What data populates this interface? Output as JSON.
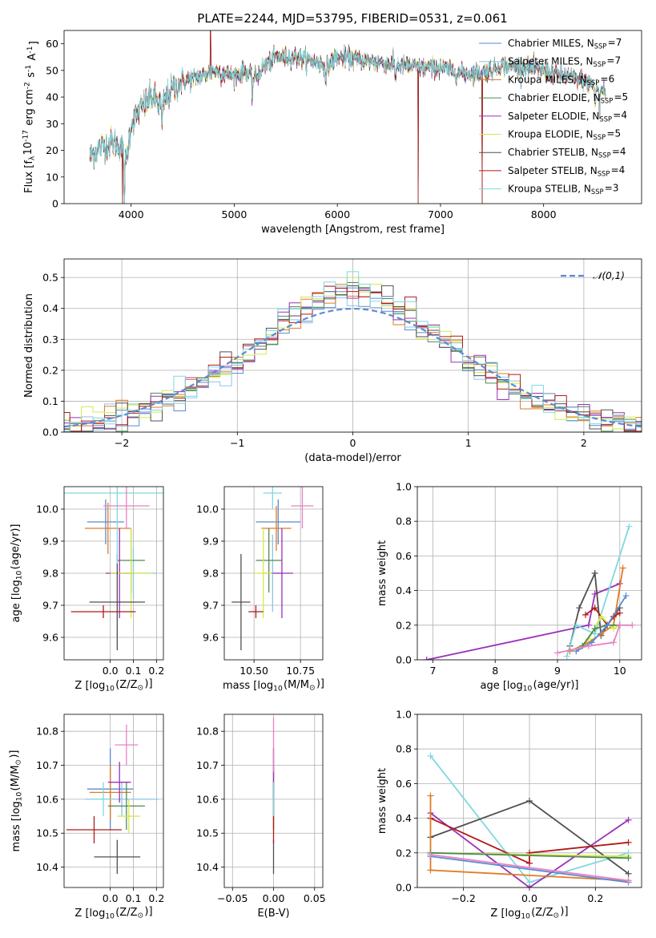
{
  "chart_data": [
    {
      "id": "spectrum",
      "type": "line",
      "title": "PLATE=2244, MJD=53795, FIBERID=0531, z=0.061",
      "xlabel": "wavelength [Angstrom, rest frame]",
      "ylabel": "Flux [f$_\\lambda$10$^{-17}$ erg cm$^{-2}$ s$^{-1}$ A$^{-1}$]",
      "xlim": [
        3350,
        8950
      ],
      "ylim": [
        0,
        65
      ],
      "xticks": [
        4000,
        5000,
        6000,
        7000,
        8000
      ],
      "yticks": [
        0,
        10,
        20,
        30,
        40,
        50,
        60
      ],
      "grid": false,
      "legend": "top-right",
      "continuum": {
        "x": [
          3600,
          3700,
          3800,
          3900,
          3950,
          4000,
          4100,
          4200,
          4300,
          4400,
          4500,
          4600,
          4700,
          4800,
          4900,
          5000,
          5100,
          5200,
          5300,
          5400,
          5500,
          5600,
          5700,
          5800,
          5900,
          6000,
          6200,
          6400,
          6600,
          6800,
          7000,
          7200,
          7400,
          7600,
          7800,
          8000,
          8200,
          8400,
          8600
        ],
        "y": [
          18,
          21,
          23,
          22,
          15,
          30,
          36,
          40,
          37,
          43,
          46,
          47,
          48,
          50,
          49,
          48,
          50,
          47,
          52,
          55,
          55,
          55,
          54,
          53,
          52,
          55,
          54,
          53,
          52,
          51,
          51,
          49,
          49,
          52,
          51,
          50,
          48,
          46,
          42
        ]
      },
      "features": [
        {
          "x": 3934,
          "depth": 16
        },
        {
          "x": 4300,
          "depth": 10
        },
        {
          "x": 5175,
          "depth": 8
        },
        {
          "x": 5890,
          "depth": 8
        },
        {
          "x": 6563,
          "depth": 6
        },
        {
          "x": 8500,
          "depth": 8
        },
        {
          "x": 8542,
          "depth": 10
        },
        {
          "x": 8662,
          "depth": 9
        }
      ],
      "artifacts": [
        {
          "x": 3915,
          "y": 0
        },
        {
          "x": 6785,
          "y": 0
        },
        {
          "x": 7405,
          "y": 0
        },
        {
          "x": 4770,
          "y": 65
        }
      ],
      "series": [
        {
          "name": "Chabrier MILES, N$_{SSP}$=7",
          "color": "#5b8bd0"
        },
        {
          "name": "Salpeter MILES, N$_{SSP}$=7",
          "color": "#8ec4e8"
        },
        {
          "name": "Kroupa MILES, N$_{SSP}$=6",
          "color": "#e07b27"
        },
        {
          "name": "Chabrier ELODIE, N$_{SSP}$=5",
          "color": "#4f8a4f"
        },
        {
          "name": "Salpeter ELODIE, N$_{SSP}$=4",
          "color": "#9b30b8"
        },
        {
          "name": "Kroupa ELODIE, N$_{SSP}$=5",
          "color": "#d6e84a"
        },
        {
          "name": "Chabrier STELIB, N$_{SSP}$=4",
          "color": "#505050"
        },
        {
          "name": "Salpeter STELIB, N$_{SSP}$=4",
          "color": "#b01a1a"
        },
        {
          "name": "Kroupa STELIB, N$_{SSP}$=3",
          "color": "#7fd8e0"
        }
      ]
    },
    {
      "id": "residuals",
      "type": "bar",
      "xlabel": "(data-model)/error",
      "ylabel": "Normed distribution",
      "xlim": [
        -2.5,
        2.5
      ],
      "ylim": [
        0,
        0.56
      ],
      "xticks": [
        -2,
        -1,
        0,
        1,
        2
      ],
      "yticks": [
        0.0,
        0.1,
        0.2,
        0.3,
        0.4,
        0.5
      ],
      "grid": true,
      "legend": "top-right",
      "reference": {
        "name": "$\\mathcal{N}(0,1)$",
        "color": "#5b8bd0",
        "style": "dashed"
      },
      "bin_width": 0.1
    },
    {
      "id": "age-vs-Z",
      "type": "scatter",
      "xlabel": "Z [log$_{10}$(Z/Z$_\\odot$)]",
      "ylabel": "age  [log$_{10}$(age/yr)]",
      "xlim": [
        -0.2,
        0.23
      ],
      "ylim": [
        9.53,
        10.07
      ],
      "xticks": [
        0.0,
        0.1,
        0.2
      ],
      "yticks": [
        9.6,
        9.7,
        9.8,
        9.9,
        10.0
      ],
      "grid": true,
      "points": [
        {
          "x": -0.02,
          "y": 9.96,
          "xerr": 0.08,
          "yerr": 0.07,
          "color": "#5b8bd0"
        },
        {
          "x": 0.1,
          "y": 9.8,
          "xerr": 0.1,
          "yerr": 0.08,
          "color": "#8ec4e8"
        },
        {
          "x": -0.01,
          "y": 9.94,
          "xerr": 0.1,
          "yerr": 0.08,
          "color": "#e07b27"
        },
        {
          "x": 0.09,
          "y": 9.84,
          "xerr": 0.06,
          "yerr": 0.1,
          "color": "#4f8a4f"
        },
        {
          "x": 0.04,
          "y": 9.8,
          "xerr": 0.06,
          "yerr": 0.14,
          "color": "#9b30b8"
        },
        {
          "x": 0.09,
          "y": 9.8,
          "xerr": 0.09,
          "yerr": 0.14,
          "color": "#d6e84a"
        },
        {
          "x": 0.03,
          "y": 9.71,
          "xerr": 0.12,
          "yerr": 0.15,
          "color": "#505050"
        },
        {
          "x": -0.03,
          "y": 9.68,
          "xerr": 0.14,
          "yerr": 0.02,
          "color": "#b01a1a"
        },
        {
          "x": 0.03,
          "y": 10.05,
          "xerr": 0.26,
          "yerr": 0.22,
          "color": "#7fd8e0"
        },
        {
          "x": 0.07,
          "y": 10.01,
          "xerr": 0.1,
          "yerr": 0.07,
          "color": "#e882c4"
        }
      ]
    },
    {
      "id": "age-vs-mass",
      "type": "scatter",
      "xlabel": "mass [log$_{10}$(M/M$_\\odot$)]",
      "ylabel": "",
      "xlim": [
        10.34,
        10.87
      ],
      "ylim": [
        9.53,
        10.07
      ],
      "xticks": [
        10.5,
        10.75
      ],
      "yticks": [
        9.6,
        9.7,
        9.8,
        9.9,
        10.0
      ],
      "grid": true,
      "points": [
        {
          "x": 10.63,
          "y": 9.96,
          "xerr": 0.12,
          "yerr": 0.07,
          "color": "#5b8bd0"
        },
        {
          "x": 10.6,
          "y": 9.8,
          "xerr": 0.06,
          "yerr": 0.12,
          "color": "#8ec4e8"
        },
        {
          "x": 10.62,
          "y": 9.94,
          "xerr": 0.08,
          "yerr": 0.07,
          "color": "#e07b27"
        },
        {
          "x": 10.58,
          "y": 9.84,
          "xerr": 0.07,
          "yerr": 0.1,
          "color": "#4f8a4f"
        },
        {
          "x": 10.65,
          "y": 9.8,
          "xerr": 0.06,
          "yerr": 0.14,
          "color": "#9b30b8"
        },
        {
          "x": 10.55,
          "y": 9.8,
          "xerr": 0.05,
          "yerr": 0.14,
          "color": "#d6e84a"
        },
        {
          "x": 10.43,
          "y": 9.71,
          "xerr": 0.05,
          "yerr": 0.15,
          "color": "#505050"
        },
        {
          "x": 10.51,
          "y": 9.68,
          "xerr": 0.04,
          "yerr": 0.02,
          "color": "#b01a1a"
        },
        {
          "x": 10.6,
          "y": 10.05,
          "xerr": 0.05,
          "yerr": 0.05,
          "color": "#7fd8e0"
        },
        {
          "x": 10.76,
          "y": 10.01,
          "xerr": 0.06,
          "yerr": 0.07,
          "color": "#e882c4"
        }
      ]
    },
    {
      "id": "weight-vs-age",
      "type": "line",
      "xlabel": "age  [log$_{10}$(age/yr)]",
      "ylabel": "mass weight",
      "xlim": [
        6.75,
        10.35
      ],
      "ylim": [
        0.0,
        1.0
      ],
      "xticks": [
        7,
        8,
        9,
        10
      ],
      "yticks": [
        0.0,
        0.2,
        0.4,
        0.6,
        0.8,
        1.0
      ],
      "grid": true,
      "series": [
        {
          "color": "#9b30b8",
          "x": [
            6.9,
            9.5,
            9.6,
            10.0
          ],
          "y": [
            0.0,
            0.2,
            0.38,
            0.44
          ]
        },
        {
          "color": "#505050",
          "x": [
            9.2,
            9.35,
            9.6,
            9.7,
            9.8,
            10.0
          ],
          "y": [
            0.08,
            0.3,
            0.5,
            0.14,
            0.2,
            0.3
          ]
        },
        {
          "color": "#7fd8e0",
          "x": [
            9.15,
            9.3,
            9.6,
            10.15
          ],
          "y": [
            0.02,
            0.2,
            0.15,
            0.77
          ]
        },
        {
          "color": "#e07b27",
          "x": [
            9.2,
            9.5,
            9.7,
            9.9,
            10.05
          ],
          "y": [
            0.05,
            0.1,
            0.15,
            0.2,
            0.53
          ]
        },
        {
          "color": "#b01a1a",
          "x": [
            9.45,
            9.6,
            9.8,
            9.9,
            10.0
          ],
          "y": [
            0.26,
            0.3,
            0.2,
            0.25,
            0.27
          ]
        },
        {
          "color": "#d6e84a",
          "x": [
            9.3,
            9.5,
            9.7,
            9.9,
            10.0
          ],
          "y": [
            0.05,
            0.12,
            0.25,
            0.18,
            0.2
          ]
        },
        {
          "color": "#4f8a4f",
          "x": [
            9.4,
            9.6,
            9.8,
            10.0
          ],
          "y": [
            0.08,
            0.18,
            0.2,
            0.2
          ]
        },
        {
          "color": "#5b8bd0",
          "x": [
            9.3,
            9.55,
            9.8,
            10.1
          ],
          "y": [
            0.05,
            0.1,
            0.2,
            0.37
          ]
        },
        {
          "color": "#e882c4",
          "x": [
            9.0,
            9.5,
            9.9,
            10.0,
            10.2
          ],
          "y": [
            0.04,
            0.08,
            0.1,
            0.2,
            0.2
          ]
        }
      ]
    },
    {
      "id": "mass-vs-Z",
      "type": "scatter",
      "xlabel": "Z [log$_{10}$(Z/Z$_\\odot$)]",
      "ylabel": "mass [log$_{10}$(M/M$_\\odot$)]",
      "xlim": [
        -0.2,
        0.23
      ],
      "ylim": [
        10.34,
        10.85
      ],
      "xticks": [
        0.0,
        0.1,
        0.2
      ],
      "yticks": [
        10.4,
        10.5,
        10.6,
        10.7,
        10.8
      ],
      "grid": true,
      "points": [
        {
          "x": 0.0,
          "y": 10.63,
          "xerr": 0.1,
          "yerr": 0.12,
          "color": "#5b8bd0"
        },
        {
          "x": 0.05,
          "y": 10.6,
          "xerr": 0.16,
          "yerr": 0.05,
          "color": "#8ec4e8"
        },
        {
          "x": 0.0,
          "y": 10.62,
          "xerr": 0.09,
          "yerr": 0.08,
          "color": "#e07b27"
        },
        {
          "x": 0.07,
          "y": 10.58,
          "xerr": 0.08,
          "yerr": 0.07,
          "color": "#4f8a4f"
        },
        {
          "x": 0.04,
          "y": 10.65,
          "xerr": 0.05,
          "yerr": 0.06,
          "color": "#9b30b8"
        },
        {
          "x": 0.08,
          "y": 10.55,
          "xerr": 0.05,
          "yerr": 0.05,
          "color": "#d6e84a"
        },
        {
          "x": 0.03,
          "y": 10.43,
          "xerr": 0.1,
          "yerr": 0.05,
          "color": "#505050"
        },
        {
          "x": -0.07,
          "y": 10.51,
          "xerr": 0.12,
          "yerr": 0.04,
          "color": "#b01a1a"
        },
        {
          "x": -0.03,
          "y": 10.6,
          "xerr": 0.05,
          "yerr": 0.05,
          "color": "#7fd8e0"
        },
        {
          "x": 0.07,
          "y": 10.76,
          "xerr": 0.05,
          "yerr": 0.06,
          "color": "#e882c4"
        }
      ]
    },
    {
      "id": "mass-vs-ebv",
      "type": "scatter",
      "xlabel": "E(B-V)",
      "ylabel": "",
      "xlim": [
        -0.06,
        0.06
      ],
      "ylim": [
        10.34,
        10.85
      ],
      "xticks": [
        -0.05,
        0.0,
        0.05
      ],
      "yticks": [
        10.4,
        10.5,
        10.6,
        10.7,
        10.8
      ],
      "grid": true,
      "points": [
        {
          "x": 0.0,
          "y": 10.63,
          "yerr": 0.12,
          "color": "#5b8bd0"
        },
        {
          "x": 0.0,
          "y": 10.6,
          "yerr": 0.05,
          "color": "#8ec4e8"
        },
        {
          "x": 0.0,
          "y": 10.62,
          "yerr": 0.08,
          "color": "#e07b27"
        },
        {
          "x": 0.0,
          "y": 10.58,
          "yerr": 0.07,
          "color": "#4f8a4f"
        },
        {
          "x": 0.0,
          "y": 10.65,
          "yerr": 0.1,
          "color": "#9b30b8"
        },
        {
          "x": 0.0,
          "y": 10.55,
          "yerr": 0.05,
          "color": "#d6e84a"
        },
        {
          "x": 0.0,
          "y": 10.43,
          "yerr": 0.05,
          "color": "#505050"
        },
        {
          "x": 0.0,
          "y": 10.51,
          "yerr": 0.04,
          "color": "#b01a1a"
        },
        {
          "x": 0.0,
          "y": 10.6,
          "yerr": 0.05,
          "color": "#7fd8e0"
        },
        {
          "x": 0.0,
          "y": 10.76,
          "yerr": 0.08,
          "color": "#e882c4"
        }
      ]
    },
    {
      "id": "weight-vs-Z",
      "type": "line",
      "xlabel": "Z [log$_{10}$(Z/Z$_\\odot$)]",
      "ylabel": "mass weight",
      "xlim": [
        -0.34,
        0.34
      ],
      "ylim": [
        0.0,
        1.0
      ],
      "xticks": [
        -0.2,
        0.0,
        0.2
      ],
      "yticks": [
        0.0,
        0.2,
        0.4,
        0.6,
        0.8,
        1.0
      ],
      "grid": true,
      "series": [
        {
          "color": "#7fd8e0",
          "x": [
            -0.3,
            0.0,
            0.3
          ],
          "y": [
            0.76,
            0.03,
            0.2
          ]
        },
        {
          "color": "#505050",
          "x": [
            -0.3,
            0.0,
            0.3
          ],
          "y": [
            0.29,
            0.5,
            0.08
          ]
        },
        {
          "color": "#9b30b8",
          "x": [
            -0.3,
            0.0,
            0.3
          ],
          "y": [
            0.43,
            0.0,
            0.39
          ]
        },
        {
          "color": "#b01a1a",
          "x": [
            -0.3,
            0.0,
            0.0,
            0.3
          ],
          "y": [
            0.4,
            0.14,
            0.2,
            0.26
          ]
        },
        {
          "color": "#e07b27",
          "x": [
            -0.3,
            -0.3,
            0.3
          ],
          "y": [
            0.53,
            0.1,
            0.04
          ]
        },
        {
          "color": "#d6e84a",
          "x": [
            -0.3,
            0.3
          ],
          "y": [
            0.2,
            0.18
          ]
        },
        {
          "color": "#4f8a4f",
          "x": [
            -0.3,
            0.3
          ],
          "y": [
            0.2,
            0.17
          ]
        },
        {
          "color": "#5b8bd0",
          "x": [
            -0.3,
            0.3
          ],
          "y": [
            0.18,
            0.03
          ]
        },
        {
          "color": "#e882c4",
          "x": [
            -0.3,
            0.3
          ],
          "y": [
            0.19,
            0.04
          ]
        }
      ]
    }
  ]
}
